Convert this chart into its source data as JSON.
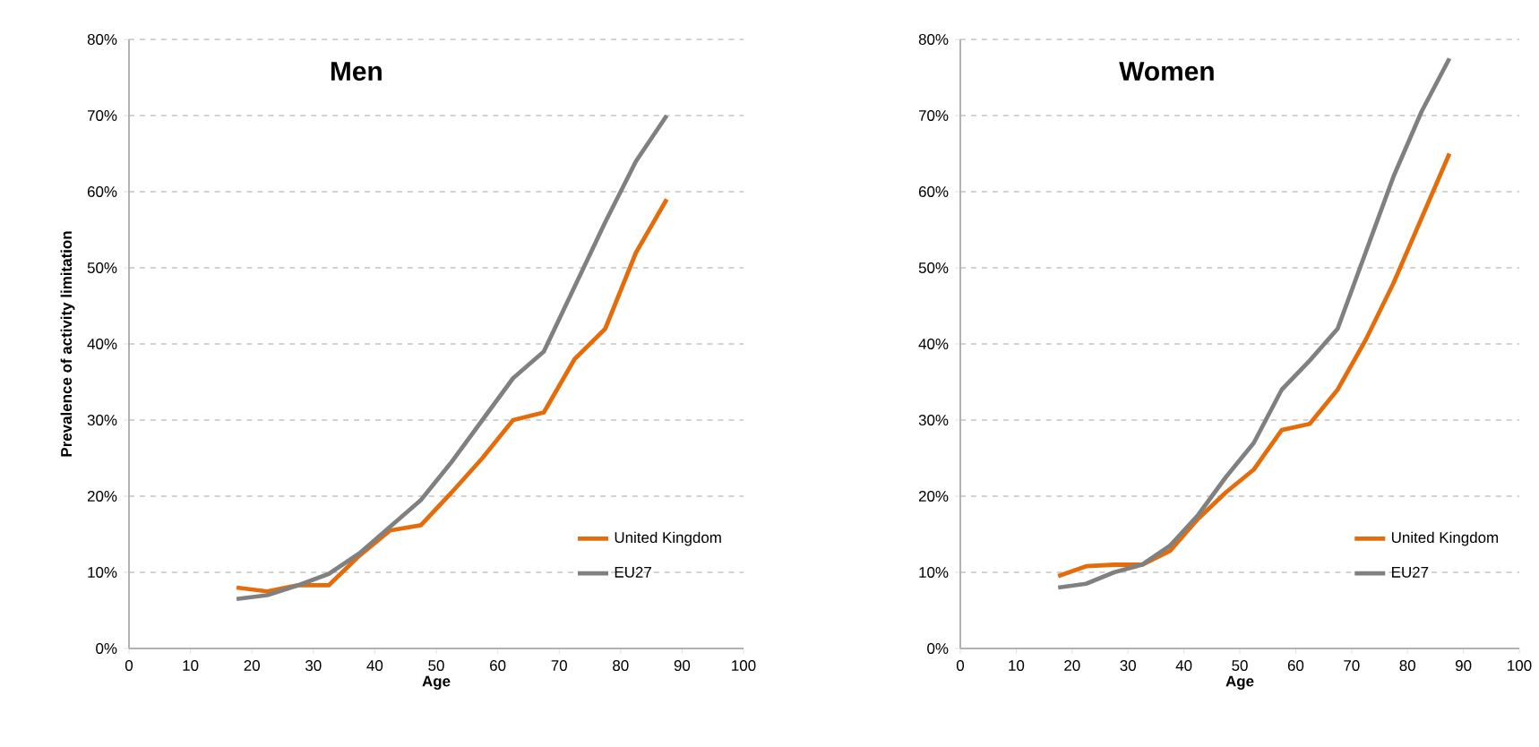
{
  "chart_data": [
    {
      "type": "line",
      "title": "Men",
      "xlabel": "Age",
      "ylabel": "Prevalence of activity limitation",
      "x": [
        17.5,
        22.5,
        27.5,
        32.5,
        37.5,
        42.5,
        47.5,
        52.5,
        57.5,
        62.5,
        67.5,
        72.5,
        77.5,
        82.5,
        87.5
      ],
      "series": [
        {
          "name": "United Kingdom",
          "color": "#e46c0a",
          "values": [
            8,
            7.5,
            8.3,
            8.3,
            12.2,
            15.5,
            16.2,
            20.5,
            25,
            30,
            31,
            38,
            42,
            52,
            59
          ]
        },
        {
          "name": "EU27",
          "color": "#808080",
          "values": [
            6.5,
            7,
            8.3,
            9.8,
            12.5,
            16,
            19.5,
            24.5,
            30,
            35.5,
            39,
            47.5,
            56,
            64,
            70
          ]
        }
      ],
      "xlim": [
        0,
        100
      ],
      "xticks": [
        0,
        10,
        20,
        30,
        40,
        50,
        60,
        70,
        80,
        90,
        100
      ],
      "ylim": [
        0,
        80
      ],
      "yticks": [
        {
          "value": 0,
          "label": "0%"
        },
        {
          "value": 10,
          "label": "10%"
        },
        {
          "value": 20,
          "label": "20%"
        },
        {
          "value": 30,
          "label": "30%"
        },
        {
          "value": 40,
          "label": "40%"
        },
        {
          "value": 50,
          "label": "50%"
        },
        {
          "value": 60,
          "label": "60%"
        },
        {
          "value": 70,
          "label": "70%"
        },
        {
          "value": 80,
          "label": "80%"
        }
      ],
      "grid": "y",
      "legend": "bottom right"
    },
    {
      "type": "line",
      "title": "Women",
      "xlabel": "Age",
      "x": [
        17.5,
        22.5,
        27.5,
        32.5,
        37.5,
        42.5,
        47.5,
        52.5,
        57.5,
        62.5,
        67.5,
        72.5,
        77.5,
        82.5,
        87.5
      ],
      "series": [
        {
          "name": "United Kingdom",
          "color": "#e46c0a",
          "values": [
            9.5,
            10.8,
            11,
            11,
            12.8,
            17,
            20.5,
            23.5,
            28.7,
            29.5,
            34,
            40.5,
            48,
            56.5,
            65
          ]
        },
        {
          "name": "EU27",
          "color": "#808080",
          "values": [
            8,
            8.5,
            10,
            11,
            13.5,
            17.5,
            22.5,
            27,
            34,
            37.8,
            42,
            52,
            62,
            70.5,
            77.5
          ]
        }
      ],
      "xlim": [
        0,
        100
      ],
      "xticks": [
        0,
        10,
        20,
        30,
        40,
        50,
        60,
        70,
        80,
        90,
        100
      ],
      "ylim": [
        0,
        80
      ],
      "yticks": [
        {
          "value": 0,
          "label": "0%"
        },
        {
          "value": 10,
          "label": "10%"
        },
        {
          "value": 20,
          "label": "20%"
        },
        {
          "value": 30,
          "label": "30%"
        },
        {
          "value": 40,
          "label": "40%"
        },
        {
          "value": 50,
          "label": "50%"
        },
        {
          "value": 60,
          "label": "60%"
        },
        {
          "value": 70,
          "label": "70%"
        },
        {
          "value": 80,
          "label": "80%"
        }
      ],
      "grid": "y",
      "legend": "bottom right"
    }
  ]
}
